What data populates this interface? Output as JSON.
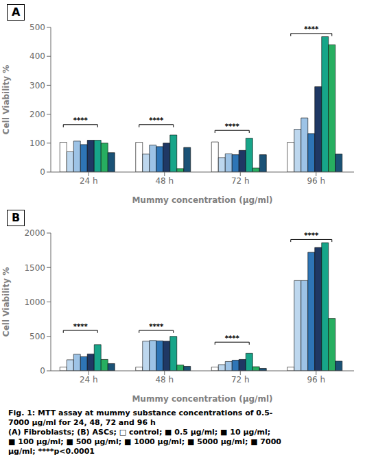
{
  "chart_data": [
    {
      "type": "bar",
      "title": "A",
      "x_label": "Mummy concentration (μg/ml)",
      "y_label": "Cell Viability %",
      "categories": [
        "24 h",
        "48 h",
        "72 h",
        "96 h"
      ],
      "series": [
        {
          "color": "#FFFFFF",
          "values": [
            103,
            103,
            104,
            103
          ]
        },
        {
          "color": "#BDD7EE",
          "values": [
            70,
            62,
            50,
            148
          ]
        },
        {
          "color": "#9DC3E6",
          "values": [
            107,
            93,
            63,
            187
          ]
        },
        {
          "color": "#2E75B6",
          "values": [
            95,
            88,
            60,
            133
          ]
        },
        {
          "color": "#1F3864",
          "values": [
            110,
            100,
            75,
            295
          ]
        },
        {
          "color": "#17A589",
          "values": [
            110,
            128,
            117,
            468
          ]
        },
        {
          "color": "#27AE60",
          "values": [
            100,
            12,
            14,
            440
          ]
        },
        {
          "color": "#1A5276",
          "values": [
            67,
            85,
            60,
            62
          ]
        }
      ],
      "ylim": [
        0,
        500
      ],
      "yticks": [
        0,
        100,
        200,
        300,
        400,
        500
      ],
      "grid": false,
      "annotations": [
        {
          "text": "****",
          "category": "24 h",
          "from_series": 0,
          "to_series": 5,
          "y": 155
        },
        {
          "text": "****",
          "category": "48 h",
          "from_series": 0,
          "to_series": 5,
          "y": 155
        },
        {
          "text": "****",
          "category": "72 h",
          "from_series": 0,
          "to_series": 5,
          "y": 135
        },
        {
          "text": "****",
          "category": "96 h",
          "from_series": 0,
          "to_series": 6,
          "y": 470
        }
      ]
    },
    {
      "type": "bar",
      "title": "B",
      "x_label": "Mummy concentration (μg/ml)",
      "y_label": "Cell Viability %",
      "categories": [
        "24 h",
        "48 h",
        "72 h",
        "96 h"
      ],
      "series": [
        {
          "color": "#FFFFFF",
          "values": [
            55,
            55,
            55,
            55
          ]
        },
        {
          "color": "#BDD7EE",
          "values": [
            160,
            430,
            90,
            1310
          ]
        },
        {
          "color": "#9DC3E6",
          "values": [
            240,
            440,
            135,
            1310
          ]
        },
        {
          "color": "#2E75B6",
          "values": [
            205,
            435,
            155,
            1720
          ]
        },
        {
          "color": "#1F3864",
          "values": [
            245,
            430,
            165,
            1790
          ]
        },
        {
          "color": "#17A589",
          "values": [
            380,
            500,
            255,
            1860
          ]
        },
        {
          "color": "#27AE60",
          "values": [
            165,
            85,
            60,
            760
          ]
        },
        {
          "color": "#1A5276",
          "values": [
            105,
            65,
            35,
            140
          ]
        }
      ],
      "ylim": [
        0,
        2000
      ],
      "yticks": [
        0,
        500,
        1000,
        1500,
        2000
      ],
      "grid": false,
      "annotations": [
        {
          "text": "****",
          "category": "24 h",
          "from_series": 0,
          "to_series": 5,
          "y": 550
        },
        {
          "text": "****",
          "category": "48 h",
          "from_series": 0,
          "to_series": 5,
          "y": 550
        },
        {
          "text": "****",
          "category": "72 h",
          "from_series": 0,
          "to_series": 5,
          "y": 380
        },
        {
          "text": "****",
          "category": "96 h",
          "from_series": 0,
          "to_series": 6,
          "y": 1870
        }
      ]
    }
  ],
  "caption": [
    "Fig. 1: MTT assay at mummy substance concentrations of 0.5-",
    "7000 µg/ml for 24, 48, 72 and 96 h",
    "(A) Fibroblasts; (B) ASCs; □ control; ■ 0.5 μg/ml; ■ 10 μg/ml;",
    "■ 100 μg/ml; ■ 500 μg/ml; ■ 1000 μg/ml; ■ 5000 μg/ml; ■ 7000",
    "μg/ml; ****p<0.0001"
  ]
}
